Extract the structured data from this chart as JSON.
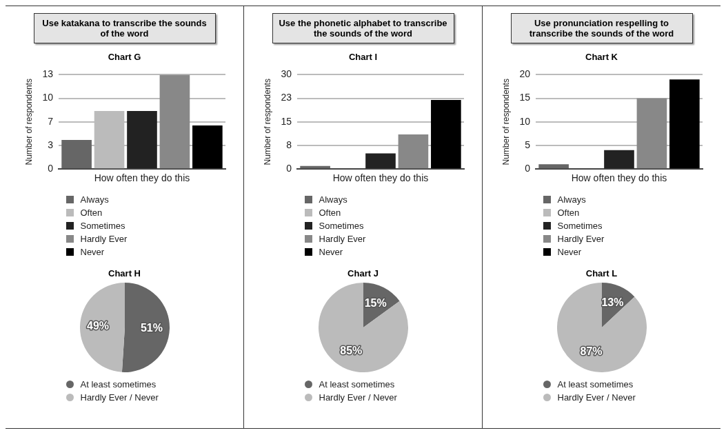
{
  "chart_data": [
    {
      "type": "bar",
      "title": "Use katakana to transcribe the sounds of the word",
      "subtitle": "Chart G",
      "ylabel": "Number of respondents",
      "xlabel": "How often they do this",
      "categories": [
        null
      ],
      "series": [
        {
          "name": "Always",
          "color": "#666666",
          "values": [
            4
          ]
        },
        {
          "name": "Often",
          "color": "#bbbbbb",
          "values": [
            8
          ]
        },
        {
          "name": "Sometimes",
          "color": "#222222",
          "values": [
            8
          ]
        },
        {
          "name": "Hardly Ever",
          "color": "#888888",
          "values": [
            13
          ]
        },
        {
          "name": "Never",
          "color": "#000000",
          "values": [
            6
          ]
        }
      ],
      "ylim": [
        0,
        13
      ],
      "yticks": [
        0,
        {
          "value": 3.25,
          "label": "3"
        },
        {
          "value": 6.5,
          "label": "7"
        },
        {
          "value": 9.75,
          "label": "10"
        },
        13
      ],
      "grid": "y",
      "legend": "bottom",
      "tick_labels": "y"
    },
    {
      "type": "pie",
      "title": "Chart H",
      "categories": [
        "At least sometimes",
        "Hardly Ever / Never"
      ],
      "values": [
        51,
        49
      ],
      "colors": [
        "#666666",
        "#bbbbbb"
      ],
      "value_labels": [
        "51%",
        "49%"
      ],
      "legend": "bottom"
    },
    {
      "type": "bar",
      "title": "Use the phonetic alphabet to transcribe the sounds of the word",
      "subtitle": "Chart I",
      "ylabel": "Number of respondents",
      "xlabel": "How often they do this",
      "categories": [
        null
      ],
      "series": [
        {
          "name": "Always",
          "color": "#666666",
          "values": [
            1
          ]
        },
        {
          "name": "Often",
          "color": "#bbbbbb",
          "values": [
            0
          ]
        },
        {
          "name": "Sometimes",
          "color": "#222222",
          "values": [
            5
          ]
        },
        {
          "name": "Hardly Ever",
          "color": "#888888",
          "values": [
            11
          ]
        },
        {
          "name": "Never",
          "color": "#000000",
          "values": [
            22
          ]
        }
      ],
      "ylim": [
        0,
        30
      ],
      "yticks": [
        0,
        {
          "value": 7.5,
          "label": "8"
        },
        15,
        {
          "value": 22.5,
          "label": "23"
        },
        30
      ],
      "grid": "y",
      "legend": "bottom",
      "tick_labels": "y"
    },
    {
      "type": "pie",
      "title": "Chart J",
      "categories": [
        "At least sometimes",
        "Hardly Ever / Never"
      ],
      "values": [
        15,
        85
      ],
      "colors": [
        "#666666",
        "#bbbbbb"
      ],
      "value_labels": [
        "15%",
        "85%"
      ],
      "legend": "bottom"
    },
    {
      "type": "bar",
      "title": "Use pronunciation respelling to transcribe the sounds of the word",
      "subtitle": "Chart K",
      "ylabel": "Number of respondents",
      "xlabel": "How often they do this",
      "categories": [
        null
      ],
      "series": [
        {
          "name": "Always",
          "color": "#666666",
          "values": [
            1
          ]
        },
        {
          "name": "Often",
          "color": "#bbbbbb",
          "values": [
            0
          ]
        },
        {
          "name": "Sometimes",
          "color": "#222222",
          "values": [
            4
          ]
        },
        {
          "name": "Hardly Ever",
          "color": "#888888",
          "values": [
            15
          ]
        },
        {
          "name": "Never",
          "color": "#000000",
          "values": [
            19
          ]
        }
      ],
      "ylim": [
        0,
        20
      ],
      "yticks": [
        0,
        5,
        10,
        15,
        20
      ],
      "grid": "y",
      "legend": "bottom",
      "tick_labels": "y"
    },
    {
      "type": "pie",
      "title": "Chart L",
      "categories": [
        "At least sometimes",
        "Hardly Ever / Never"
      ],
      "values": [
        13,
        87
      ],
      "colors": [
        "#666666",
        "#bbbbbb"
      ],
      "value_labels": [
        "13%",
        "87%"
      ],
      "legend": "bottom"
    }
  ]
}
